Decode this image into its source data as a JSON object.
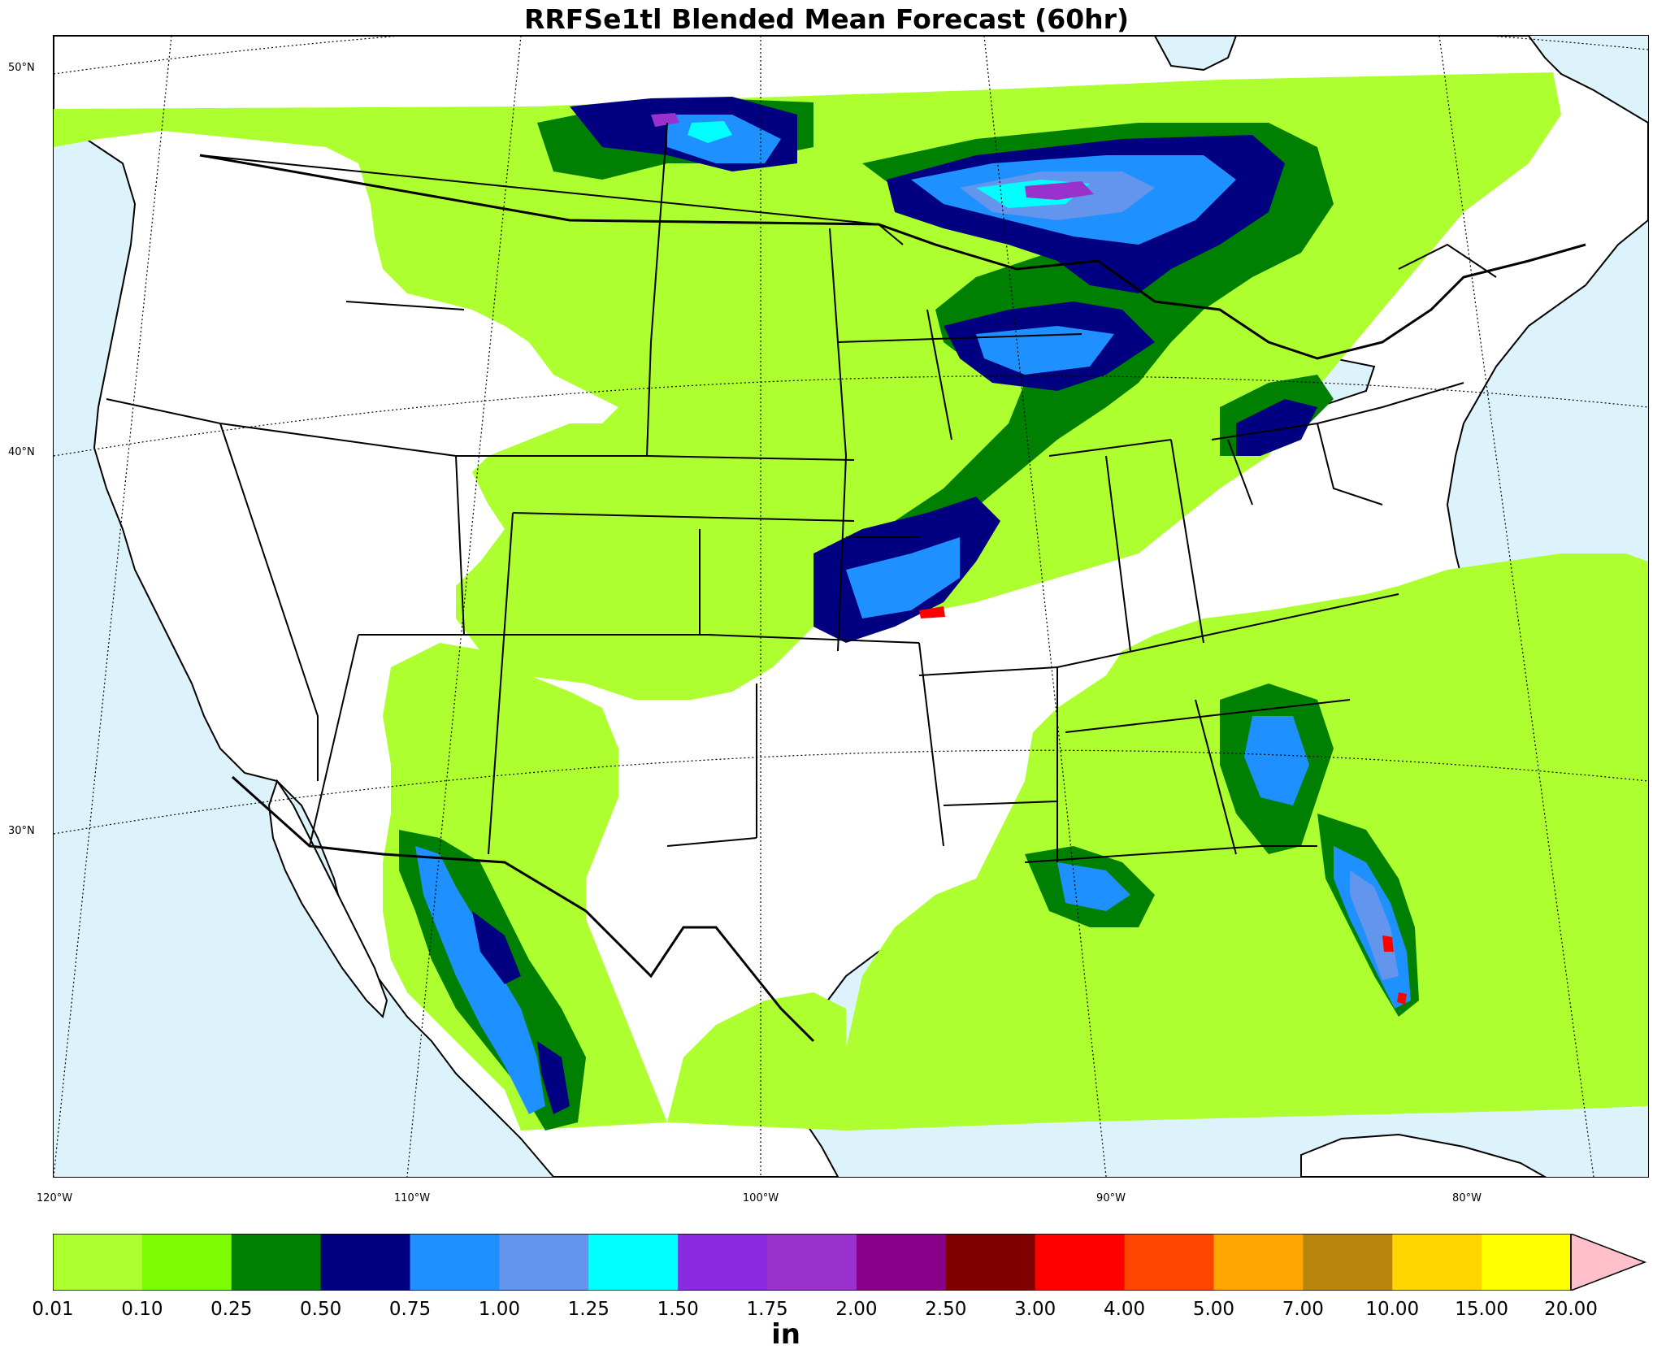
{
  "title": "RRFSe1tl Blended Mean Forecast (60hr)",
  "map": {
    "projection": "lambert-conformal",
    "ocean_color": "#ddf3fc",
    "land_color": "#ffffff",
    "lat_labels": [
      "50°N",
      "40°N",
      "30°N"
    ],
    "lon_labels": [
      "120°W",
      "110°W",
      "100°W",
      "90°W",
      "80°W"
    ]
  },
  "colorbar": {
    "units": "in",
    "extend": "max",
    "ticks": [
      "0.01",
      "0.10",
      "0.25",
      "0.50",
      "0.75",
      "1.00",
      "1.25",
      "1.50",
      "1.75",
      "2.00",
      "2.50",
      "3.00",
      "4.00",
      "5.00",
      "7.00",
      "10.00",
      "15.00",
      "20.00"
    ],
    "colors": [
      "#adff2f",
      "#7cfc00",
      "#008000",
      "#000080",
      "#1e90ff",
      "#6495ed",
      "#00ffff",
      "#8a2be2",
      "#9932cc",
      "#8b008b",
      "#800000",
      "#ff0000",
      "#ff4500",
      "#ffa500",
      "#b8860b",
      "#ffd700",
      "#ffff00"
    ],
    "extend_color": "#ffc0cb"
  }
}
